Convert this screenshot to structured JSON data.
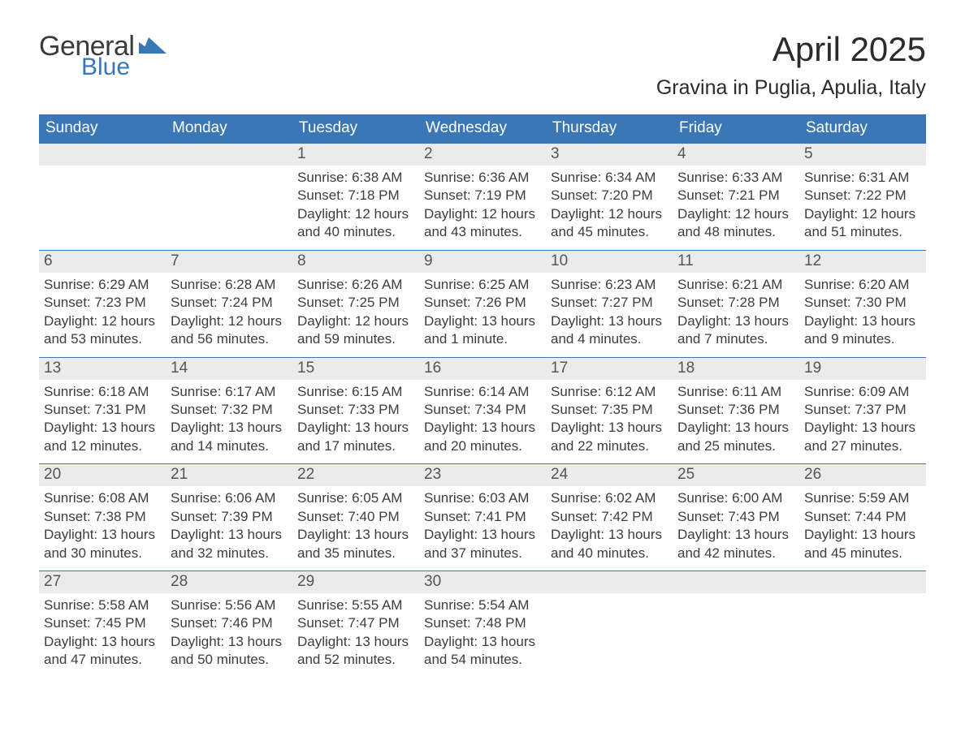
{
  "logo": {
    "general": "General",
    "blue": "Blue"
  },
  "title": "April 2025",
  "location": "Gravina in Puglia, Apulia, Italy",
  "weekdays": [
    "Sunday",
    "Monday",
    "Tuesday",
    "Wednesday",
    "Thursday",
    "Friday",
    "Saturday"
  ],
  "colors": {
    "header_bg": "#3a77b7",
    "header_fg": "#ffffff",
    "daynum_bg": "#ebebeb",
    "text": "#333333",
    "rule": "#3a77b7",
    "background": "#ffffff"
  },
  "fonts": {
    "title_size_pt": 32,
    "location_size_pt": 19,
    "weekday_size_pt": 14,
    "daynum_size_pt": 14,
    "body_size_pt": 13
  },
  "weeks": [
    [
      {
        "day": "",
        "sunrise": "",
        "sunset": "",
        "daylight": ""
      },
      {
        "day": "",
        "sunrise": "",
        "sunset": "",
        "daylight": ""
      },
      {
        "day": "1",
        "sunrise": "Sunrise: 6:38 AM",
        "sunset": "Sunset: 7:18 PM",
        "daylight": "Daylight: 12 hours and 40 minutes."
      },
      {
        "day": "2",
        "sunrise": "Sunrise: 6:36 AM",
        "sunset": "Sunset: 7:19 PM",
        "daylight": "Daylight: 12 hours and 43 minutes."
      },
      {
        "day": "3",
        "sunrise": "Sunrise: 6:34 AM",
        "sunset": "Sunset: 7:20 PM",
        "daylight": "Daylight: 12 hours and 45 minutes."
      },
      {
        "day": "4",
        "sunrise": "Sunrise: 6:33 AM",
        "sunset": "Sunset: 7:21 PM",
        "daylight": "Daylight: 12 hours and 48 minutes."
      },
      {
        "day": "5",
        "sunrise": "Sunrise: 6:31 AM",
        "sunset": "Sunset: 7:22 PM",
        "daylight": "Daylight: 12 hours and 51 minutes."
      }
    ],
    [
      {
        "day": "6",
        "sunrise": "Sunrise: 6:29 AM",
        "sunset": "Sunset: 7:23 PM",
        "daylight": "Daylight: 12 hours and 53 minutes."
      },
      {
        "day": "7",
        "sunrise": "Sunrise: 6:28 AM",
        "sunset": "Sunset: 7:24 PM",
        "daylight": "Daylight: 12 hours and 56 minutes."
      },
      {
        "day": "8",
        "sunrise": "Sunrise: 6:26 AM",
        "sunset": "Sunset: 7:25 PM",
        "daylight": "Daylight: 12 hours and 59 minutes."
      },
      {
        "day": "9",
        "sunrise": "Sunrise: 6:25 AM",
        "sunset": "Sunset: 7:26 PM",
        "daylight": "Daylight: 13 hours and 1 minute."
      },
      {
        "day": "10",
        "sunrise": "Sunrise: 6:23 AM",
        "sunset": "Sunset: 7:27 PM",
        "daylight": "Daylight: 13 hours and 4 minutes."
      },
      {
        "day": "11",
        "sunrise": "Sunrise: 6:21 AM",
        "sunset": "Sunset: 7:28 PM",
        "daylight": "Daylight: 13 hours and 7 minutes."
      },
      {
        "day": "12",
        "sunrise": "Sunrise: 6:20 AM",
        "sunset": "Sunset: 7:30 PM",
        "daylight": "Daylight: 13 hours and 9 minutes."
      }
    ],
    [
      {
        "day": "13",
        "sunrise": "Sunrise: 6:18 AM",
        "sunset": "Sunset: 7:31 PM",
        "daylight": "Daylight: 13 hours and 12 minutes."
      },
      {
        "day": "14",
        "sunrise": "Sunrise: 6:17 AM",
        "sunset": "Sunset: 7:32 PM",
        "daylight": "Daylight: 13 hours and 14 minutes."
      },
      {
        "day": "15",
        "sunrise": "Sunrise: 6:15 AM",
        "sunset": "Sunset: 7:33 PM",
        "daylight": "Daylight: 13 hours and 17 minutes."
      },
      {
        "day": "16",
        "sunrise": "Sunrise: 6:14 AM",
        "sunset": "Sunset: 7:34 PM",
        "daylight": "Daylight: 13 hours and 20 minutes."
      },
      {
        "day": "17",
        "sunrise": "Sunrise: 6:12 AM",
        "sunset": "Sunset: 7:35 PM",
        "daylight": "Daylight: 13 hours and 22 minutes."
      },
      {
        "day": "18",
        "sunrise": "Sunrise: 6:11 AM",
        "sunset": "Sunset: 7:36 PM",
        "daylight": "Daylight: 13 hours and 25 minutes."
      },
      {
        "day": "19",
        "sunrise": "Sunrise: 6:09 AM",
        "sunset": "Sunset: 7:37 PM",
        "daylight": "Daylight: 13 hours and 27 minutes."
      }
    ],
    [
      {
        "day": "20",
        "sunrise": "Sunrise: 6:08 AM",
        "sunset": "Sunset: 7:38 PM",
        "daylight": "Daylight: 13 hours and 30 minutes."
      },
      {
        "day": "21",
        "sunrise": "Sunrise: 6:06 AM",
        "sunset": "Sunset: 7:39 PM",
        "daylight": "Daylight: 13 hours and 32 minutes."
      },
      {
        "day": "22",
        "sunrise": "Sunrise: 6:05 AM",
        "sunset": "Sunset: 7:40 PM",
        "daylight": "Daylight: 13 hours and 35 minutes."
      },
      {
        "day": "23",
        "sunrise": "Sunrise: 6:03 AM",
        "sunset": "Sunset: 7:41 PM",
        "daylight": "Daylight: 13 hours and 37 minutes."
      },
      {
        "day": "24",
        "sunrise": "Sunrise: 6:02 AM",
        "sunset": "Sunset: 7:42 PM",
        "daylight": "Daylight: 13 hours and 40 minutes."
      },
      {
        "day": "25",
        "sunrise": "Sunrise: 6:00 AM",
        "sunset": "Sunset: 7:43 PM",
        "daylight": "Daylight: 13 hours and 42 minutes."
      },
      {
        "day": "26",
        "sunrise": "Sunrise: 5:59 AM",
        "sunset": "Sunset: 7:44 PM",
        "daylight": "Daylight: 13 hours and 45 minutes."
      }
    ],
    [
      {
        "day": "27",
        "sunrise": "Sunrise: 5:58 AM",
        "sunset": "Sunset: 7:45 PM",
        "daylight": "Daylight: 13 hours and 47 minutes."
      },
      {
        "day": "28",
        "sunrise": "Sunrise: 5:56 AM",
        "sunset": "Sunset: 7:46 PM",
        "daylight": "Daylight: 13 hours and 50 minutes."
      },
      {
        "day": "29",
        "sunrise": "Sunrise: 5:55 AM",
        "sunset": "Sunset: 7:47 PM",
        "daylight": "Daylight: 13 hours and 52 minutes."
      },
      {
        "day": "30",
        "sunrise": "Sunrise: 5:54 AM",
        "sunset": "Sunset: 7:48 PM",
        "daylight": "Daylight: 13 hours and 54 minutes."
      },
      {
        "day": "",
        "sunrise": "",
        "sunset": "",
        "daylight": ""
      },
      {
        "day": "",
        "sunrise": "",
        "sunset": "",
        "daylight": ""
      },
      {
        "day": "",
        "sunrise": "",
        "sunset": "",
        "daylight": ""
      }
    ]
  ]
}
